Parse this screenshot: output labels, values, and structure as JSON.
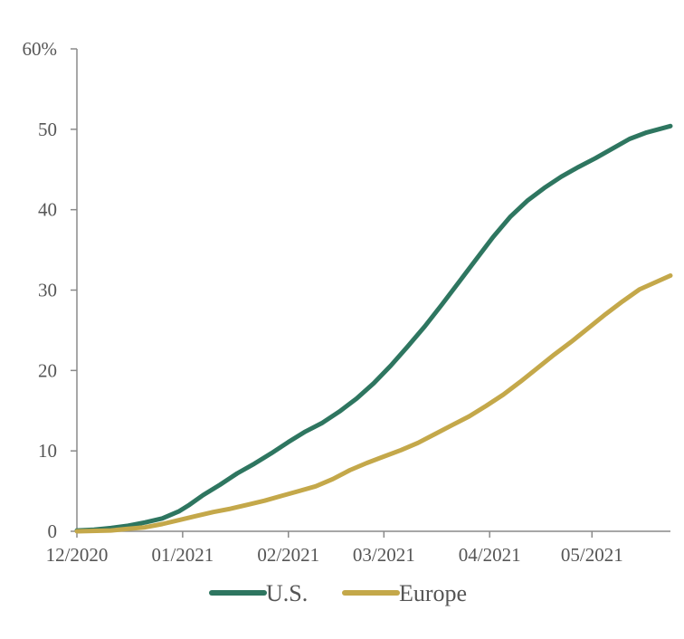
{
  "chart_data": {
    "type": "line",
    "title": "",
    "xlabel": "",
    "ylabel": "",
    "ylim": [
      0,
      60
    ],
    "grid": false,
    "legend_position": "bottom",
    "y_ticks": [
      {
        "value": 0,
        "label": "0"
      },
      {
        "value": 10,
        "label": "10"
      },
      {
        "value": 20,
        "label": "20"
      },
      {
        "value": 30,
        "label": "30"
      },
      {
        "value": 40,
        "label": "40"
      },
      {
        "value": 50,
        "label": "50"
      },
      {
        "value": 60,
        "label": "60%"
      }
    ],
    "x_ticks": [
      {
        "value": "2020-12-01",
        "label": "12/2020"
      },
      {
        "value": "2021-01-01",
        "label": "01/2021"
      },
      {
        "value": "2021-02-01",
        "label": "02/2021"
      },
      {
        "value": "2021-03-01",
        "label": "03/2021"
      },
      {
        "value": "2021-04-01",
        "label": "04/2021"
      },
      {
        "value": "2021-05-01",
        "label": "05/2021"
      }
    ],
    "xlim": [
      "2020-12-01",
      "2021-05-24"
    ],
    "series": [
      {
        "name": "U.S.",
        "color": "#2e7660",
        "points": [
          [
            "2020-12-01",
            0.1
          ],
          [
            "2020-12-06",
            0.2
          ],
          [
            "2020-12-11",
            0.4
          ],
          [
            "2020-12-16",
            0.7
          ],
          [
            "2020-12-21",
            1.1
          ],
          [
            "2020-12-26",
            1.6
          ],
          [
            "2020-12-31",
            2.5
          ],
          [
            "2021-01-03",
            3.3
          ],
          [
            "2021-01-07",
            4.5
          ],
          [
            "2021-01-12",
            5.8
          ],
          [
            "2021-01-17",
            7.2
          ],
          [
            "2021-01-22",
            8.4
          ],
          [
            "2021-01-27",
            9.7
          ],
          [
            "2021-02-01",
            11.1
          ],
          [
            "2021-02-06",
            12.4
          ],
          [
            "2021-02-11",
            13.5
          ],
          [
            "2021-02-16",
            14.9
          ],
          [
            "2021-02-21",
            16.5
          ],
          [
            "2021-02-26",
            18.4
          ],
          [
            "2021-03-03",
            20.6
          ],
          [
            "2021-03-08",
            23.0
          ],
          [
            "2021-03-13",
            25.5
          ],
          [
            "2021-03-18",
            28.2
          ],
          [
            "2021-03-23",
            31.0
          ],
          [
            "2021-03-28",
            33.8
          ],
          [
            "2021-04-02",
            36.6
          ],
          [
            "2021-04-07",
            39.1
          ],
          [
            "2021-04-12",
            41.1
          ],
          [
            "2021-04-17",
            42.7
          ],
          [
            "2021-04-22",
            44.1
          ],
          [
            "2021-04-27",
            45.3
          ],
          [
            "2021-05-02",
            46.4
          ],
          [
            "2021-05-07",
            47.6
          ],
          [
            "2021-05-12",
            48.8
          ],
          [
            "2021-05-17",
            49.6
          ],
          [
            "2021-05-24",
            50.4
          ]
        ]
      },
      {
        "name": "Europe",
        "color": "#c4a84a",
        "points": [
          [
            "2020-12-01",
            0.0
          ],
          [
            "2020-12-11",
            0.1
          ],
          [
            "2020-12-16",
            0.3
          ],
          [
            "2020-12-21",
            0.5
          ],
          [
            "2020-12-26",
            0.9
          ],
          [
            "2020-12-31",
            1.4
          ],
          [
            "2021-01-05",
            1.9
          ],
          [
            "2021-01-10",
            2.4
          ],
          [
            "2021-01-15",
            2.8
          ],
          [
            "2021-01-20",
            3.3
          ],
          [
            "2021-01-25",
            3.8
          ],
          [
            "2021-01-30",
            4.4
          ],
          [
            "2021-02-04",
            5.0
          ],
          [
            "2021-02-09",
            5.6
          ],
          [
            "2021-02-14",
            6.5
          ],
          [
            "2021-02-19",
            7.6
          ],
          [
            "2021-02-24",
            8.5
          ],
          [
            "2021-03-01",
            9.3
          ],
          [
            "2021-03-06",
            10.1
          ],
          [
            "2021-03-11",
            11.0
          ],
          [
            "2021-03-16",
            12.1
          ],
          [
            "2021-03-21",
            13.2
          ],
          [
            "2021-03-26",
            14.3
          ],
          [
            "2021-03-31",
            15.6
          ],
          [
            "2021-04-05",
            17.0
          ],
          [
            "2021-04-10",
            18.6
          ],
          [
            "2021-04-15",
            20.3
          ],
          [
            "2021-04-20",
            22.0
          ],
          [
            "2021-04-25",
            23.6
          ],
          [
            "2021-04-30",
            25.3
          ],
          [
            "2021-05-05",
            27.0
          ],
          [
            "2021-05-10",
            28.6
          ],
          [
            "2021-05-15",
            30.1
          ],
          [
            "2021-05-24",
            31.8
          ]
        ]
      }
    ]
  }
}
